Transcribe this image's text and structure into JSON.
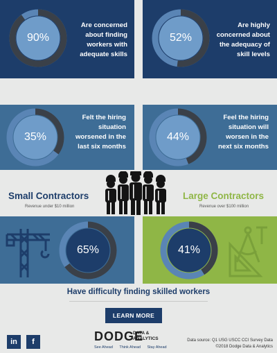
{
  "stats": [
    {
      "pct": "90%",
      "text": "Are concerned\nabout finding\nworkers with\nadequate skills",
      "value": 0.9
    },
    {
      "pct": "52%",
      "text": "Are highly\nconcerned about\nthe adequacy of\nskill levels",
      "value": 0.52
    },
    {
      "pct": "35%",
      "text": "Felt the hiring\nsituation\nworsened in the\nlast six months",
      "value": 0.35
    },
    {
      "pct": "44%",
      "text": "Feel the hiring\nsituation will\nworsen in the\nnext six months",
      "value": 0.44
    }
  ],
  "contractors": {
    "small": {
      "title": "Small Contractors",
      "sub": "Revenue under $10 million",
      "pct": "65%",
      "value": 0.65,
      "color": "#1d3d6a"
    },
    "large": {
      "title": "Large Contractors",
      "sub": "Revenue over $100 million",
      "pct": "41%",
      "value": 0.41,
      "color": "#8fb646"
    }
  },
  "tagline": "Have difficulty finding skilled workers",
  "cta": {
    "learn_more": "LEARN MORE"
  },
  "social": {
    "linkedin": "in",
    "facebook": "f"
  },
  "logo": {
    "word": "DODGE",
    "sub": "DATA &\nANALYTICS",
    "tags": [
      "See Ahead",
      "Think Ahead",
      "Stay Ahead"
    ]
  },
  "source": {
    "line1": "Data source: Q1 USG USCC CCI Survey Data",
    "line2": "©2018 Dodge Data & Analytics"
  },
  "colors": {
    "navy": "#1d3d6a",
    "steel": "#3e6d96",
    "green": "#8fb646",
    "ring_track": "#5a85b5",
    "ring_fill": "#3a4048",
    "donut_center": "#6f9cc9"
  }
}
